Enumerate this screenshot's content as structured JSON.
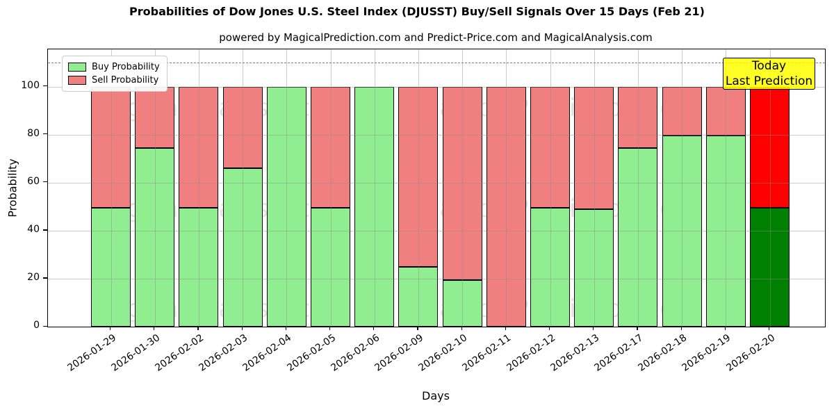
{
  "title": "Probabilities of Dow Jones U.S. Steel Index (DJUSST) Buy/Sell Signals Over 15 Days (Feb 21)",
  "subtitle": "powered by MagicalPrediction.com and Predict-Price.com and MagicalAnalysis.com",
  "xlabel": "Days",
  "ylabel": "Probability",
  "legend": {
    "buy_label": "Buy Probability",
    "sell_label": "Sell Probability"
  },
  "annotation_box": {
    "line1": "Today",
    "line2": "Last Prediction"
  },
  "watermarks": {
    "left_text": "MagicalAnalysis.com",
    "right_text": "MagicalPrediction.com"
  },
  "colors": {
    "buy": "#90EE90",
    "sell": "#F08080",
    "last_bar_buy": "#008000",
    "last_bar_sell": "#FF0000",
    "today_box_bg": "#FFFF00",
    "grid": "#8c8c8c",
    "dashed_line": "#7a7a7a"
  },
  "chart_data": {
    "type": "bar",
    "stacked": true,
    "title": "Probabilities of Dow Jones U.S. Steel Index (DJUSST) Buy/Sell Signals Over 15 Days (Feb 21)",
    "xlabel": "Days",
    "ylabel": "Probability",
    "legend_position": "upper left",
    "grid": true,
    "ylim": [
      0,
      115.5
    ],
    "yticks": [
      0,
      20,
      40,
      60,
      80,
      100
    ],
    "dashed_line_y": 110,
    "categories": [
      "2026-01-29",
      "2026-01-30",
      "2026-02-02",
      "2026-02-03",
      "2026-02-04",
      "2026-02-05",
      "2026-02-06",
      "2026-02-09",
      "2026-02-10",
      "2026-02-11",
      "2026-02-12",
      "2026-02-13",
      "2026-02-17",
      "2026-02-18",
      "2026-02-19",
      "2026-02-20"
    ],
    "series": [
      {
        "name": "Buy Probability",
        "values": [
          49.5,
          74.5,
          49.5,
          66,
          100,
          49.5,
          100,
          25,
          19.5,
          0,
          49.5,
          49,
          74.5,
          79.5,
          79.5,
          49.5
        ]
      },
      {
        "name": "Sell Probability",
        "values": [
          50.5,
          25.5,
          50.5,
          34,
          0,
          50.5,
          0,
          75,
          80.5,
          100,
          50.5,
          51,
          25.5,
          20.5,
          20.5,
          50.5
        ]
      }
    ],
    "highlighted_last_bar": "2026-02-20"
  }
}
